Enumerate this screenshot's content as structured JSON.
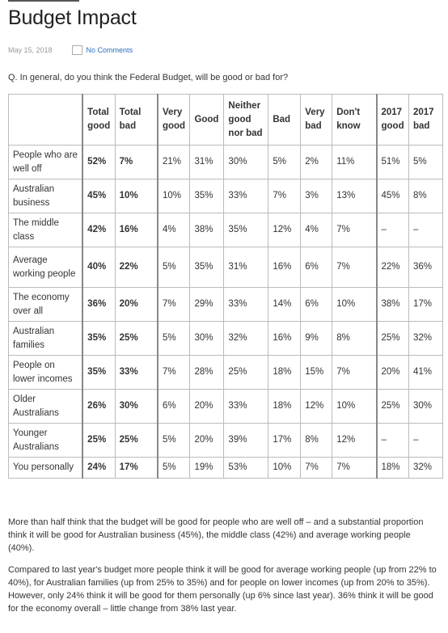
{
  "post": {
    "title": "Budget Impact",
    "date": "May 15, 2018",
    "comments_label": "No Comments",
    "question": "Q. In general, do you think the Federal Budget, will be good or bad for?"
  },
  "table": {
    "headers": [
      "",
      "Total good",
      "Total bad",
      "Very good",
      "Good",
      "Neither good nor bad",
      "Bad",
      "Very bad",
      "Don't know",
      "2017 good",
      "2017 bad"
    ],
    "rows": [
      [
        "People who are well off",
        "52%",
        "7%",
        "21%",
        "31%",
        "30%",
        "5%",
        "2%",
        "11%",
        "51%",
        "5%"
      ],
      [
        "Australian business",
        "45%",
        "10%",
        "10%",
        "35%",
        "33%",
        "7%",
        "3%",
        "13%",
        "45%",
        "8%"
      ],
      [
        "The middle class",
        "42%",
        "16%",
        "4%",
        "38%",
        "35%",
        "12%",
        "4%",
        "7%",
        "–",
        "–"
      ],
      [
        "Average working people",
        "40%",
        "22%",
        "5%",
        "35%",
        "31%",
        "16%",
        "6%",
        "7%",
        "22%",
        "36%"
      ],
      [
        "The economy over all",
        "36%",
        "20%",
        "7%",
        "29%",
        "33%",
        "14%",
        "6%",
        "10%",
        "38%",
        "17%"
      ],
      [
        "Australian families",
        "35%",
        "25%",
        "5%",
        "30%",
        "32%",
        "16%",
        "9%",
        "8%",
        "25%",
        "32%"
      ],
      [
        "People on lower incomes",
        "35%",
        "33%",
        "7%",
        "28%",
        "25%",
        "18%",
        "15%",
        "7%",
        "20%",
        "41%"
      ],
      [
        "Older Australians",
        "26%",
        "30%",
        "6%",
        "20%",
        "33%",
        "18%",
        "12%",
        "10%",
        "25%",
        "30%"
      ],
      [
        "Younger Australians",
        "25%",
        "25%",
        "5%",
        "20%",
        "39%",
        "17%",
        "8%",
        "12%",
        "–",
        "–"
      ],
      [
        "You personally",
        "24%",
        "17%",
        "5%",
        "19%",
        "53%",
        "10%",
        "7%",
        "7%",
        "18%",
        "32%"
      ]
    ]
  },
  "body": {
    "paragraph1": "More than half think that the budget will be good for people who are well off – and a substantial proportion think it will be good for Australian business (45%), the middle class (42%) and average working people (40%).",
    "paragraph2": "Compared to last year's budget more people think it will be good for average working people (up from 22% to 40%), for Australian families (up from 25% to 35%) and for people on lower incomes (up from 20% to 35%). However, only 24% think it will be good for them personally  (up 6% since last year).  36% think it will be good for the economy overall – little change from 38% last year."
  }
}
